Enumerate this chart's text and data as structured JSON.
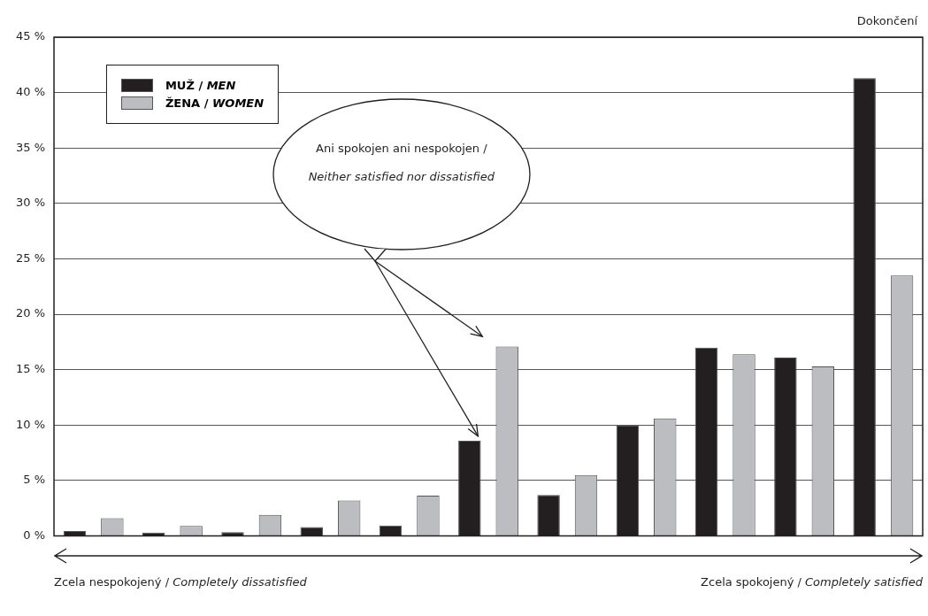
{
  "chart_data": {
    "type": "bar",
    "categories": [
      null,
      null,
      null,
      null,
      null,
      null,
      null,
      null,
      null,
      null,
      null
    ],
    "series": [
      {
        "name": "MUŽ / MEN",
        "color": "#231f20",
        "values": [
          0.45,
          0.3,
          0.35,
          0.8,
          0.95,
          8.6,
          3.7,
          10.0,
          17.0,
          16.1,
          41.3
        ]
      },
      {
        "name": "ŽENA / WOMEN",
        "color": "#bcbdc0",
        "values": [
          1.6,
          0.9,
          1.9,
          3.2,
          3.65,
          17.1,
          5.5,
          10.6,
          16.4,
          15.3,
          23.5
        ]
      }
    ],
    "ylim": [
      0,
      45
    ],
    "yticks": [
      {
        "value": 0,
        "label": "0 %"
      },
      {
        "value": 5,
        "label": "5 %"
      },
      {
        "value": 10,
        "label": "10 %"
      },
      {
        "value": 15,
        "label": "15 %"
      },
      {
        "value": 20,
        "label": "20 %"
      },
      {
        "value": 25,
        "label": "25 %"
      },
      {
        "value": 30,
        "label": "30 %"
      },
      {
        "value": 35,
        "label": "35 %"
      },
      {
        "value": 40,
        "label": "40 %"
      },
      {
        "value": 45,
        "label": "45 %"
      }
    ],
    "grid": "y",
    "legend": "top left",
    "annotations": [
      "Dokončení",
      "Ani spokojen ani nespokojen / Neither satisfied nor dissatisfied",
      "Zcela nespokojený / Completely dissatisfied",
      "Zcela spokojený / Completely satisfied"
    ]
  }
}
